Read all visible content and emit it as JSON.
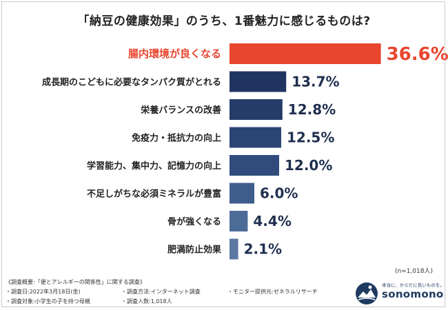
{
  "title": "「納豆の健康効果」のうち、1番魅力に感じるものは?",
  "n_note": "(n=1,018人)",
  "colors": {
    "highlight": "#e8462f",
    "bars": [
      "#1b2d55",
      "#1f3460",
      "#253c6a",
      "#2a4474",
      "#304b7c",
      "#3f5d8c",
      "#4d6b97",
      "#5a78a2"
    ]
  },
  "chart_data": {
    "type": "bar",
    "orientation": "horizontal",
    "title": "「納豆の健康効果」のうち、1番魅力に感じるものは?",
    "categories": [
      "腸内環境が良くなる",
      "成長期のこどもに必要なタンパク質がとれる",
      "栄養バランスの改善",
      "免疫力・抵抗力の向上",
      "学習能力、集中力、記憶力の向上",
      "不足しがちな必須ミネラルが豊富",
      "骨が強くなる",
      "肥満防止効果"
    ],
    "values": [
      36.6,
      13.7,
      12.8,
      12.5,
      12.0,
      6.0,
      4.4,
      2.1
    ],
    "value_labels": [
      "36.6%",
      "13.7%",
      "12.8%",
      "12.5%",
      "12.0%",
      "6.0%",
      "4.4%",
      "2.1%"
    ],
    "unit": "%",
    "highlight_index": 0,
    "xlim": [
      0,
      40
    ]
  },
  "footer": {
    "survey_header": "《調査概要:「便とアレルギーの関係性」に関する調査》",
    "date": "・調査日:2022年3月18日(金)",
    "method": "・調査方法:インターネット調査",
    "provider": "・モニター提供元:ゼネラルリサーチ",
    "target": "・調査対象:小学生の子を持つ母親",
    "count": "・調査人数:1,018人"
  },
  "logo": {
    "tagline": "本当に、からだに良いものを。",
    "brand": "sonomono",
    "icon": "mountain-sun-logo-icon"
  }
}
